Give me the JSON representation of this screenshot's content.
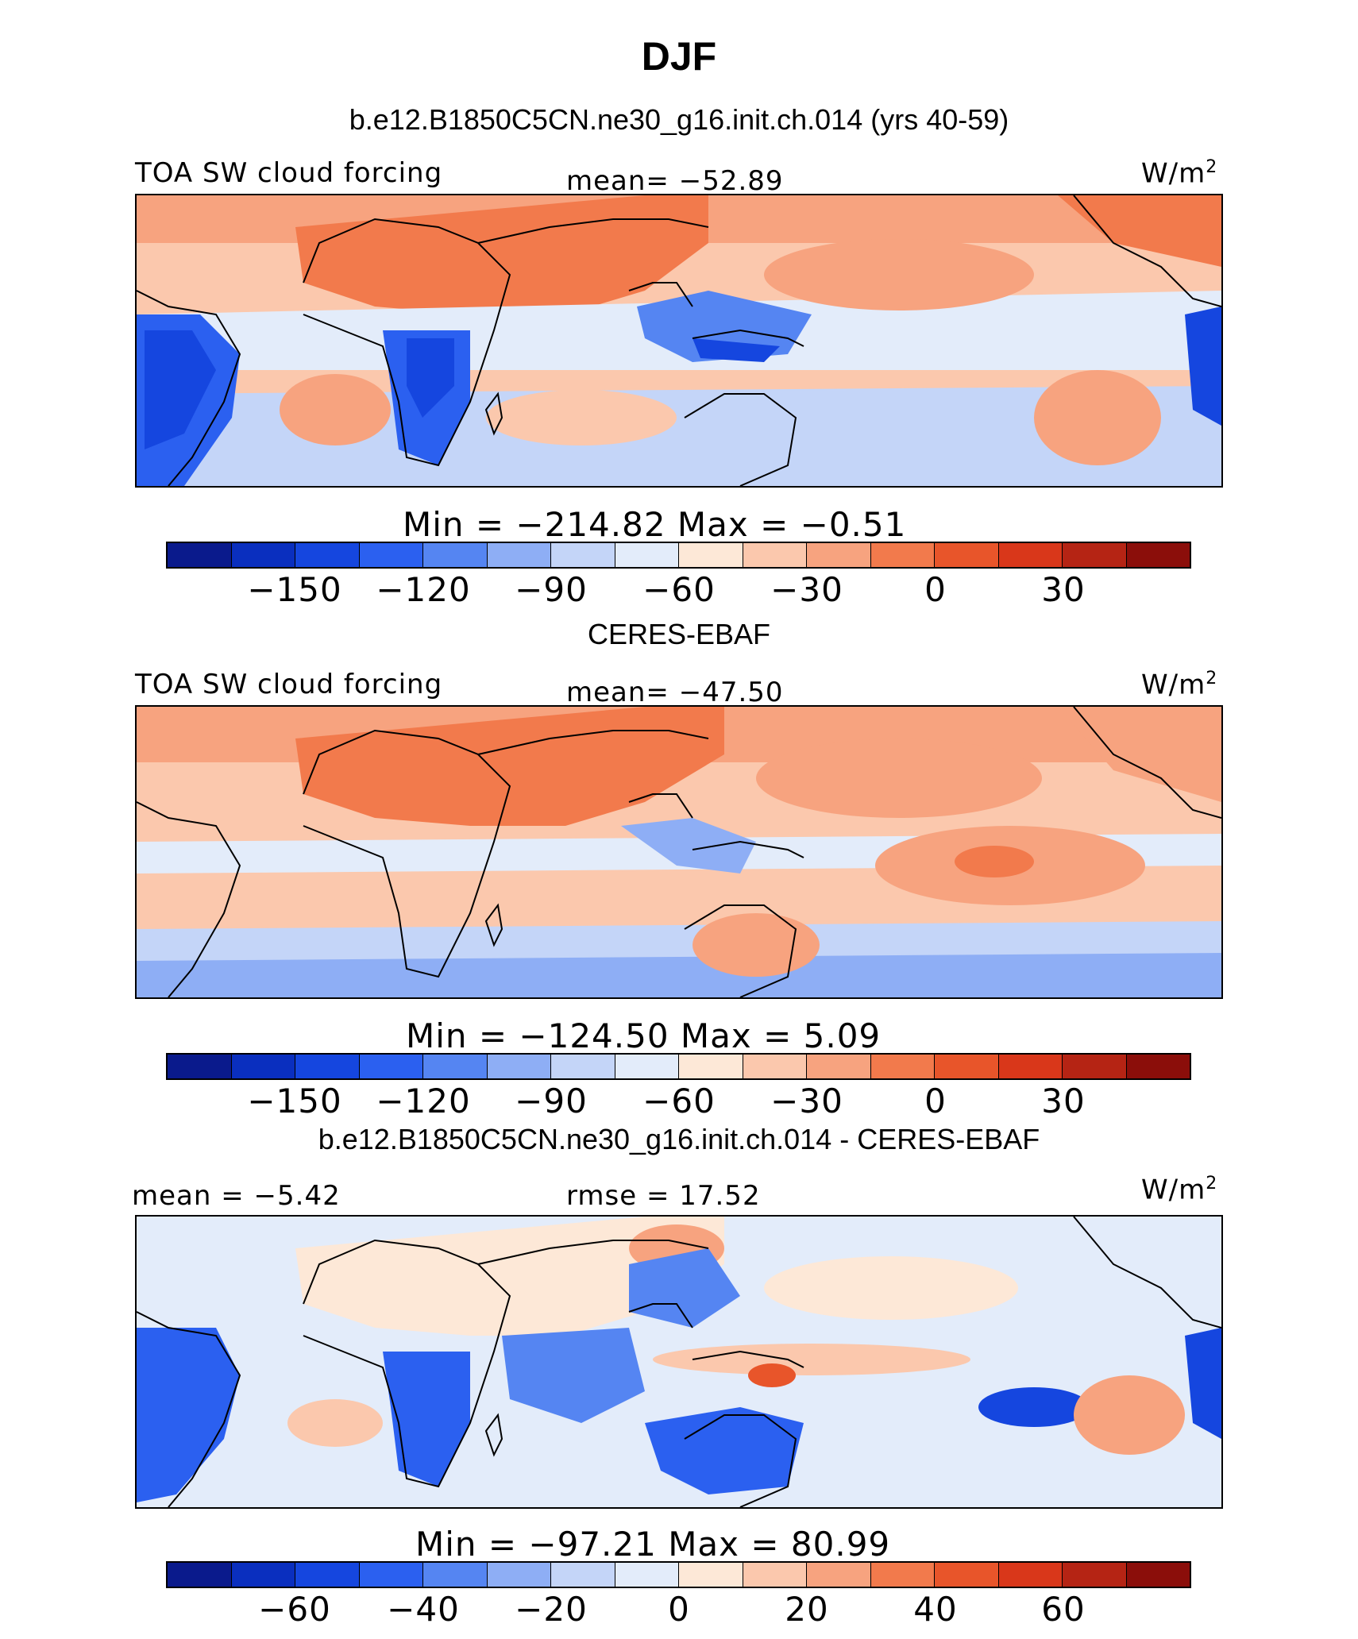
{
  "figure": {
    "season": "DJF"
  },
  "colors": {
    "palette": [
      "#0a1a8c",
      "#0a2fbf",
      "#1546df",
      "#2b60f0",
      "#5585f2",
      "#8eaef5",
      "#c4d5f8",
      "#e3ecfa",
      "#fde8d7",
      "#fbc8ad",
      "#f7a37f",
      "#f27a4c",
      "#e8552a",
      "#d9371a",
      "#b52414",
      "#8b0e0a"
    ]
  },
  "panels": [
    {
      "title": "b.e12.B1850C5CN.ne30_g16.init.ch.014 (yrs 40-59)",
      "left_label": "TOA SW cloud forcing",
      "center_label": "mean= −52.89",
      "units": "W/m",
      "units_sup": "2",
      "min_max": "Min = −214.82 Max = −0.51",
      "colorbar_ticks": [
        "−150",
        "−120",
        "−90",
        "−60",
        "−30",
        "0",
        "30"
      ],
      "map": {
        "projection": "cylindrical-equidistant",
        "variable": "TOA SW cloud forcing",
        "color_scale": "blue-white-red"
      }
    },
    {
      "title": "CERES-EBAF",
      "left_label": "TOA SW cloud forcing",
      "center_label": "mean= −47.50",
      "units": "W/m",
      "units_sup": "2",
      "min_max": "Min = −124.50 Max = 5.09",
      "colorbar_ticks": [
        "−150",
        "−120",
        "−90",
        "−60",
        "−30",
        "0",
        "30"
      ],
      "map": {
        "projection": "cylindrical-equidistant",
        "variable": "TOA SW cloud forcing",
        "color_scale": "blue-white-red"
      }
    },
    {
      "title": "b.e12.B1850C5CN.ne30_g16.init.ch.014 - CERES-EBAF",
      "left_label": "mean = −5.42",
      "center_label": "rmse = 17.52",
      "units": "W/m",
      "units_sup": "2",
      "min_max": "Min = −97.21 Max = 80.99",
      "colorbar_ticks": [
        "−60",
        "−40",
        "−20",
        "0",
        "20",
        "40",
        "60"
      ],
      "map": {
        "projection": "cylindrical-equidistant",
        "variable": "difference",
        "color_scale": "blue-white-red"
      }
    }
  ]
}
